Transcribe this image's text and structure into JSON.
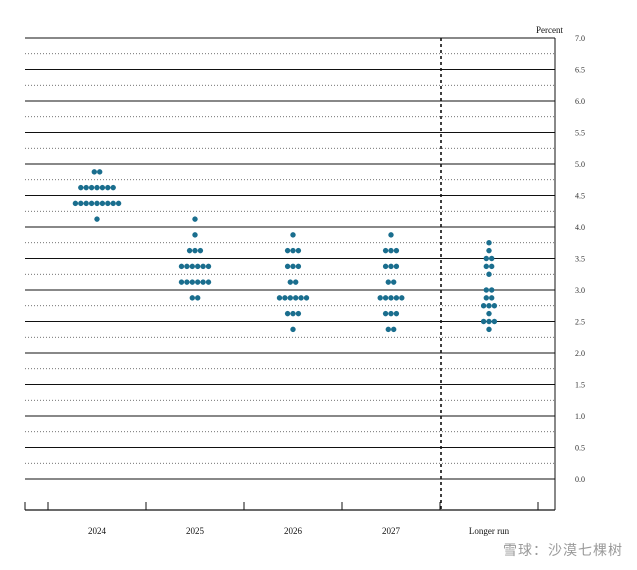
{
  "chart_data": {
    "type": "scatter",
    "ylabel": "Percent",
    "ylim": [
      0,
      7
    ],
    "yticks": [
      "0.0",
      "0.5",
      "1.0",
      "1.5",
      "2.0",
      "2.5",
      "3.0",
      "3.5",
      "4.0",
      "4.5",
      "5.0",
      "5.5",
      "6.0",
      "6.5",
      "7.0"
    ],
    "categories": [
      "2024",
      "2025",
      "2026",
      "2027",
      "Longer run"
    ],
    "dots": [
      {
        "x": "2024",
        "y": 4.875,
        "count": 2
      },
      {
        "x": "2024",
        "y": 4.625,
        "count": 7
      },
      {
        "x": "2024",
        "y": 4.375,
        "count": 9
      },
      {
        "x": "2024",
        "y": 4.125,
        "count": 1
      },
      {
        "x": "2025",
        "y": 4.125,
        "count": 1
      },
      {
        "x": "2025",
        "y": 3.875,
        "count": 1
      },
      {
        "x": "2025",
        "y": 3.625,
        "count": 3
      },
      {
        "x": "2025",
        "y": 3.375,
        "count": 6
      },
      {
        "x": "2025",
        "y": 3.125,
        "count": 6
      },
      {
        "x": "2025",
        "y": 2.875,
        "count": 2
      },
      {
        "x": "2026",
        "y": 3.875,
        "count": 1
      },
      {
        "x": "2026",
        "y": 3.625,
        "count": 3
      },
      {
        "x": "2026",
        "y": 3.375,
        "count": 3
      },
      {
        "x": "2026",
        "y": 3.125,
        "count": 2
      },
      {
        "x": "2026",
        "y": 2.875,
        "count": 6
      },
      {
        "x": "2026",
        "y": 2.625,
        "count": 3
      },
      {
        "x": "2026",
        "y": 2.375,
        "count": 1
      },
      {
        "x": "2027",
        "y": 3.875,
        "count": 1
      },
      {
        "x": "2027",
        "y": 3.625,
        "count": 3
      },
      {
        "x": "2027",
        "y": 3.375,
        "count": 3
      },
      {
        "x": "2027",
        "y": 3.125,
        "count": 2
      },
      {
        "x": "2027",
        "y": 2.875,
        "count": 5
      },
      {
        "x": "2027",
        "y": 2.625,
        "count": 3
      },
      {
        "x": "2027",
        "y": 2.375,
        "count": 2
      },
      {
        "x": "Longer run",
        "y": 3.75,
        "count": 1
      },
      {
        "x": "Longer run",
        "y": 3.625,
        "count": 1
      },
      {
        "x": "Longer run",
        "y": 3.5,
        "count": 2
      },
      {
        "x": "Longer run",
        "y": 3.375,
        "count": 2
      },
      {
        "x": "Longer run",
        "y": 3.25,
        "count": 1
      },
      {
        "x": "Longer run",
        "y": 3.0,
        "count": 2
      },
      {
        "x": "Longer run",
        "y": 2.875,
        "count": 2
      },
      {
        "x": "Longer run",
        "y": 2.75,
        "count": 3
      },
      {
        "x": "Longer run",
        "y": 2.625,
        "count": 1
      },
      {
        "x": "Longer run",
        "y": 2.5,
        "count": 3
      },
      {
        "x": "Longer run",
        "y": 2.375,
        "count": 1
      }
    ],
    "dot_color": "#1a6e8e",
    "grid": true,
    "legend": "none"
  },
  "watermark": "雪球：沙漠七棵树"
}
